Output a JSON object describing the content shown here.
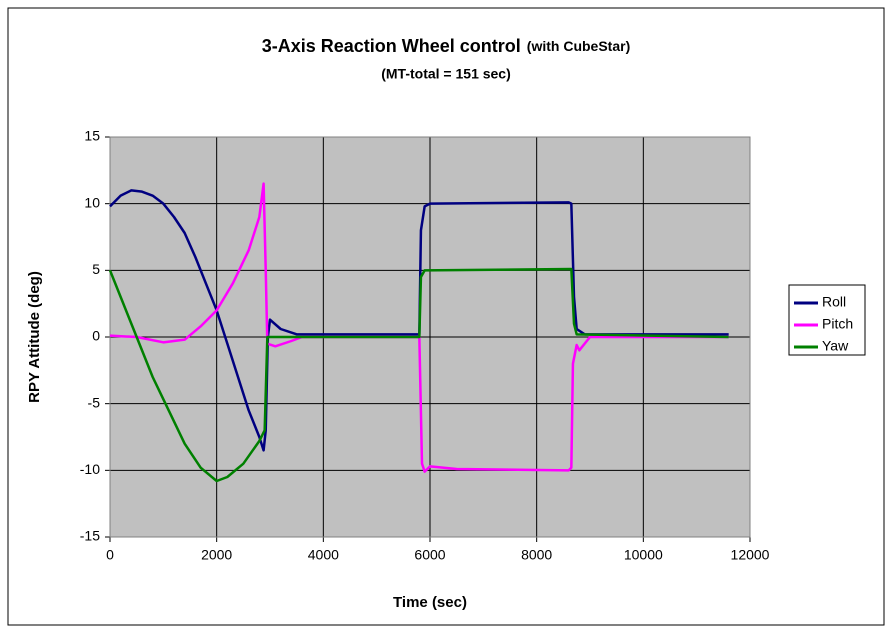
{
  "chart_data": {
    "type": "line",
    "title": "3-Axis Reaction Wheel control",
    "title_note": "(with CubeStar)",
    "subtitle": "(MT-total = 151 sec)",
    "xlabel": "Time (sec)",
    "ylabel": "RPY Attitude (deg)",
    "xlim": [
      0,
      12000
    ],
    "xticks": [
      0,
      2000,
      4000,
      6000,
      8000,
      10000,
      12000
    ],
    "ylim": [
      -15,
      15
    ],
    "yticks": [
      -15,
      -10,
      -5,
      0,
      5,
      10,
      15
    ],
    "grid": true,
    "legend": "right",
    "series": [
      {
        "name": "Roll",
        "color": "#000080",
        "x": [
          0,
          200,
          400,
          600,
          800,
          1000,
          1200,
          1400,
          1600,
          1800,
          2000,
          2200,
          2400,
          2600,
          2800,
          2880,
          2920,
          2960,
          3000,
          3200,
          3500,
          5800,
          5830,
          5900,
          6000,
          8600,
          8650,
          8700,
          8750,
          8900,
          11600
        ],
        "values": [
          9.8,
          10.6,
          11,
          10.9,
          10.6,
          10,
          9,
          7.8,
          6,
          4,
          2,
          -0.5,
          -3,
          -5.5,
          -7.5,
          -8.5,
          -7,
          0,
          1.3,
          0.6,
          0.2,
          0.2,
          8,
          9.8,
          10,
          10.1,
          10,
          3,
          0.6,
          0.2,
          0.2
        ]
      },
      {
        "name": "Pitch",
        "color": "#ff00ff",
        "x": [
          0,
          500,
          1000,
          1400,
          1700,
          2000,
          2300,
          2600,
          2800,
          2880,
          2920,
          2950,
          3100,
          3400,
          3600,
          5800,
          5850,
          5900,
          6000,
          6500,
          8600,
          8650,
          8680,
          8750,
          8800,
          9000,
          11600
        ],
        "values": [
          0.1,
          0,
          -0.4,
          -0.2,
          0.8,
          2,
          4,
          6.5,
          9,
          11.5,
          5,
          -0.5,
          -0.7,
          -0.3,
          0,
          0,
          -9.5,
          -10.1,
          -9.7,
          -9.9,
          -10,
          -9.8,
          -2,
          -0.6,
          -1,
          0,
          0
        ]
      },
      {
        "name": "Yaw",
        "color": "#008000",
        "x": [
          0,
          200,
          500,
          800,
          1100,
          1400,
          1700,
          2000,
          2200,
          2500,
          2800,
          2900,
          2950,
          5800,
          5830,
          5900,
          8650,
          8700,
          8750,
          11600
        ],
        "values": [
          5,
          3,
          0,
          -3,
          -5.5,
          -8,
          -9.8,
          -10.8,
          -10.5,
          -9.5,
          -7.8,
          -7,
          0,
          0,
          4.5,
          5,
          5.1,
          1,
          0.2,
          0
        ]
      }
    ]
  }
}
